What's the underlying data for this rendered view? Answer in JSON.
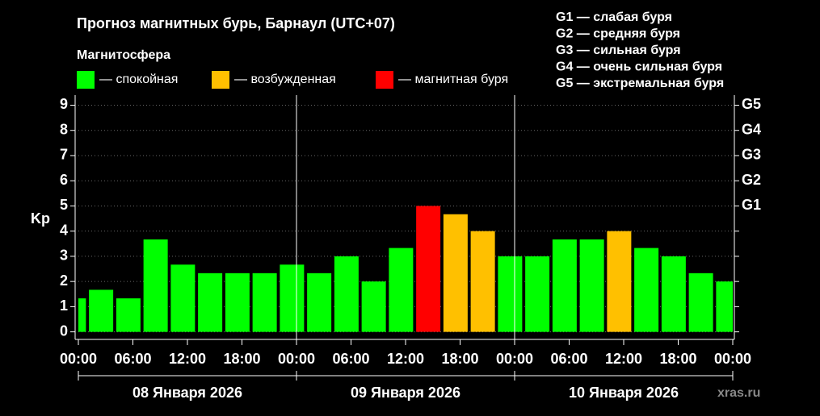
{
  "chart_data": {
    "type": "bar",
    "title": "Прогноз магнитных бурь, Барнаул (UTC+07)",
    "subtitle": "Магнитосфера",
    "legend": [
      {
        "label": "— спокойная",
        "color": "#00ff00"
      },
      {
        "label": "— возбужденная",
        "color": "#ffc000"
      },
      {
        "label": "— магнитная буря",
        "color": "#ff0000"
      }
    ],
    "storm_scale": [
      "G1 — слабая буря",
      "G2 — средняя буря",
      "G3 — сильная буря",
      "G4 — очень сильная буря",
      "G5 — экстремальная буря"
    ],
    "y_label": "Kp",
    "x": [
      -0.5,
      2.5,
      5.5,
      8.5,
      11.5,
      14.5,
      17.5,
      20.5,
      23.5,
      26.5,
      29.5,
      32.5,
      35.5,
      38.5,
      41.5,
      44.5,
      47.5,
      50.5,
      53.5,
      56.5,
      59.5,
      62.5,
      65.5,
      68.5,
      71.5
    ],
    "values": [
      1.33,
      1.67,
      1.33,
      3.67,
      2.67,
      2.33,
      2.33,
      2.33,
      2.67,
      2.33,
      3.0,
      2.0,
      3.33,
      5.0,
      4.67,
      4.0,
      3.0,
      3.0,
      3.67,
      3.67,
      4.0,
      3.33,
      3.0,
      2.33,
      2.0
    ],
    "colors": [
      "#00ff00",
      "#00ff00",
      "#00ff00",
      "#00ff00",
      "#00ff00",
      "#00ff00",
      "#00ff00",
      "#00ff00",
      "#00ff00",
      "#00ff00",
      "#00ff00",
      "#00ff00",
      "#00ff00",
      "#ff0000",
      "#ffc000",
      "#ffc000",
      "#00ff00",
      "#00ff00",
      "#00ff00",
      "#00ff00",
      "#ffc000",
      "#00ff00",
      "#00ff00",
      "#00ff00",
      "#00ff00"
    ],
    "xlim": [
      0,
      72
    ],
    "xticks": [
      {
        "value": 0,
        "label": "00:00"
      },
      {
        "value": 6,
        "label": "06:00"
      },
      {
        "value": 12,
        "label": "12:00"
      },
      {
        "value": 18,
        "label": "18:00"
      },
      {
        "value": 24,
        "label": "00:00"
      },
      {
        "value": 30,
        "label": "06:00"
      },
      {
        "value": 36,
        "label": "12:00"
      },
      {
        "value": 42,
        "label": "18:00"
      },
      {
        "value": 48,
        "label": "00:00"
      },
      {
        "value": 54,
        "label": "06:00"
      },
      {
        "value": 60,
        "label": "12:00"
      },
      {
        "value": 66,
        "label": "18:00"
      },
      {
        "value": 72,
        "label": "00:00"
      }
    ],
    "day_separators": [
      24,
      48
    ],
    "day_labels": [
      {
        "value": 12,
        "label": "08 Января 2026"
      },
      {
        "value": 36,
        "label": "09 Января 2026"
      },
      {
        "value": 60,
        "label": "10 Января 2026"
      }
    ],
    "ylim": [
      -0.3,
      9.4
    ],
    "yticks": [
      0,
      1,
      2,
      3,
      4,
      5,
      6,
      7,
      8,
      9
    ],
    "y2ticks": [
      {
        "value": 5,
        "label": "G1"
      },
      {
        "value": 6,
        "label": "G2"
      },
      {
        "value": 7,
        "label": "G3"
      },
      {
        "value": 8,
        "label": "G4"
      },
      {
        "value": 9,
        "label": "G5"
      }
    ],
    "grid": true,
    "watermark": "xras.ru"
  }
}
